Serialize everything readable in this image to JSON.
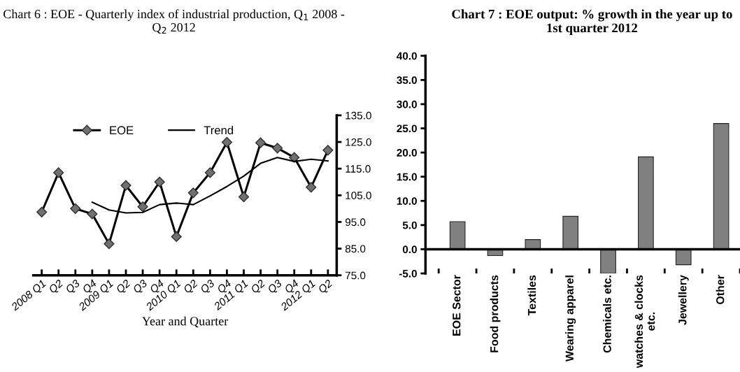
{
  "chart_data": [
    {
      "type": "line",
      "title": "Chart 6 : EOE - Quarterly index of industrial production, Q$_{1}$ 2008 - Q$_{2}$ 2012",
      "xlabel": "Year and Quarter",
      "categories": [
        "2008 Q1",
        "Q2",
        "Q3",
        "Q4",
        "2009 Q1",
        "Q2",
        "Q3",
        "Q4",
        "2010 Q1",
        "Q2",
        "Q3",
        "Q4",
        "2011 Q1",
        "Q2",
        "Q3",
        "Q4",
        "2012 Q1",
        "Q2"
      ],
      "series": [
        {
          "name": "EOE",
          "color": "#000000",
          "marker": "diamond",
          "values": [
            98.7,
            113.5,
            100.0,
            98.0,
            86.8,
            108.7,
            100.7,
            110.0,
            89.5,
            105.9,
            113.5,
            124.9,
            104.4,
            124.7,
            122.7,
            119.2,
            108.0,
            121.9
          ]
        },
        {
          "name": "Trend",
          "color": "#000000",
          "marker": "none",
          "values": [
            null,
            null,
            null,
            102.4,
            99.5,
            98.4,
            98.6,
            101.5,
            102.1,
            101.5,
            104.8,
            108.3,
            112.2,
            117.0,
            119.2,
            117.7,
            118.5,
            117.9
          ]
        }
      ],
      "ylim": [
        75,
        135
      ],
      "yticks": [
        {
          "value": 75,
          "label": "75.0"
        },
        {
          "value": 85,
          "label": "85.0"
        },
        {
          "value": 95,
          "label": "95.0"
        },
        {
          "value": 105,
          "label": "105.0"
        },
        {
          "value": 115,
          "label": "115.0"
        },
        {
          "value": 125,
          "label": "125.0"
        },
        {
          "value": 135,
          "label": "135.0"
        }
      ],
      "legend": "top left",
      "line_style": "solid"
    },
    {
      "type": "bar",
      "title": "Chart 7 : EOE output: % growth in the year up to 1st quarter 2012",
      "categories": [
        "EOE Sector",
        "Food products",
        "Textiles",
        "Wearing apparel",
        "Chemicals etc.",
        "watches & clocks\netc.",
        "Jewellery",
        "Other"
      ],
      "values": [
        5.7,
        -1.3,
        2.0,
        6.8,
        -5.0,
        19.1,
        -3.2,
        26.0
      ],
      "color": "#808080",
      "ylim": [
        -5,
        40
      ],
      "yticks": [
        {
          "value": -5,
          "label": "-5.0"
        },
        {
          "value": 0,
          "label": "0.0"
        },
        {
          "value": 5,
          "label": "5.0"
        },
        {
          "value": 10,
          "label": "10.0"
        },
        {
          "value": 15,
          "label": "15.0"
        },
        {
          "value": 20,
          "label": "20.0"
        },
        {
          "value": 25,
          "label": "25.0"
        },
        {
          "value": 30,
          "label": "30.0"
        },
        {
          "value": 35,
          "label": "35.0"
        },
        {
          "value": 40,
          "label": "40.0"
        }
      ]
    }
  ]
}
